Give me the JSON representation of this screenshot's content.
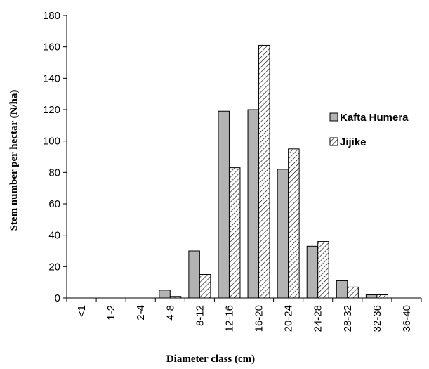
{
  "chart_data": {
    "type": "bar",
    "title": "",
    "xlabel": "Diameter class (cm)",
    "ylabel": "Stem number per hectar (N/ha)",
    "categories": [
      "<1",
      "1-2",
      "2-4",
      "4-8",
      "8-12",
      "12-16",
      "16-20",
      "20-24",
      "24-28",
      "28-32",
      "32-36",
      "36-40"
    ],
    "series": [
      {
        "name": "Kafta Humera",
        "fill": "solid-gray",
        "color": "#b3b3b3",
        "values": [
          0,
          0,
          0,
          5,
          30,
          119,
          120,
          82,
          33,
          11,
          2,
          0
        ]
      },
      {
        "name": "Jijike",
        "fill": "diagonal-hatch",
        "color": "#ffffff",
        "values": [
          0,
          0,
          0,
          1,
          15,
          83,
          161,
          95,
          36,
          7,
          2,
          0
        ]
      }
    ],
    "ylim": [
      0,
      180
    ],
    "yticks": [
      0,
      20,
      40,
      60,
      80,
      100,
      120,
      140,
      160,
      180
    ],
    "grid": false,
    "legend_position": "right"
  }
}
